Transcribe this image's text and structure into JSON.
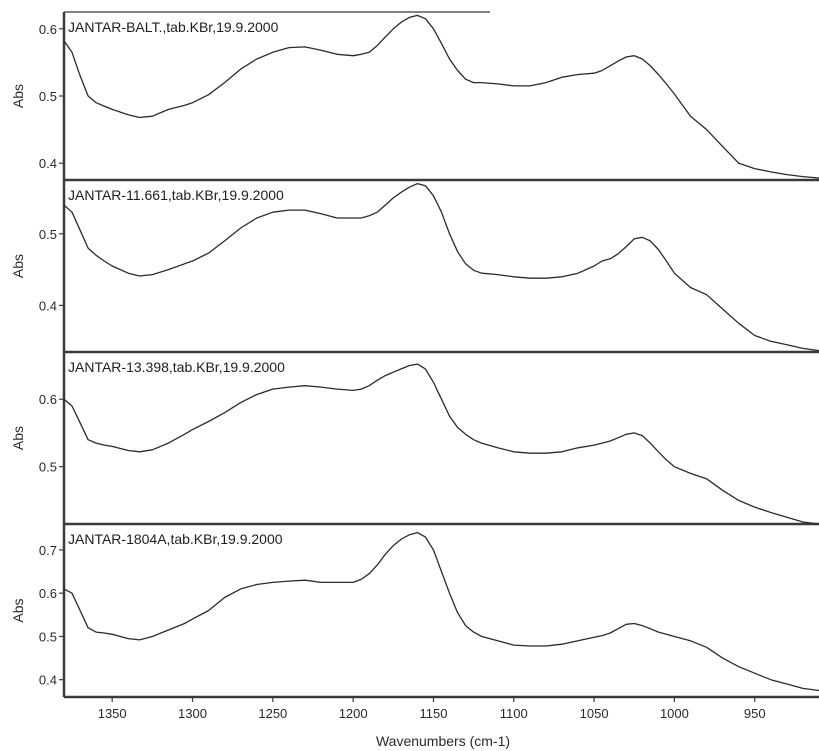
{
  "chart_data": [
    {
      "type": "line",
      "title": "JANTAR-BALT.,tab.KBr,19.9.2000",
      "ylabel": "Abs",
      "ylim": [
        0.375,
        0.625
      ],
      "yticks": [
        0.4,
        0.5,
        0.6
      ],
      "series": [
        {
          "x": [
            1380,
            1375,
            1370,
            1365,
            1360,
            1355,
            1350,
            1340,
            1333,
            1325,
            1315,
            1305,
            1300,
            1290,
            1280,
            1270,
            1260,
            1250,
            1240,
            1230,
            1220,
            1210,
            1200,
            1195,
            1190,
            1185,
            1180,
            1175,
            1170,
            1165,
            1160,
            1155,
            1150,
            1145,
            1140,
            1135,
            1130,
            1125,
            1120,
            1110,
            1100,
            1090,
            1080,
            1070,
            1060,
            1050,
            1045,
            1040,
            1035,
            1030,
            1025,
            1020,
            1015,
            1010,
            1005,
            1000,
            990,
            980,
            970,
            960,
            950,
            940,
            930,
            920,
            910
          ],
          "y": [
            0.582,
            0.565,
            0.53,
            0.5,
            0.49,
            0.485,
            0.48,
            0.472,
            0.468,
            0.47,
            0.48,
            0.486,
            0.49,
            0.502,
            0.52,
            0.54,
            0.555,
            0.565,
            0.572,
            0.573,
            0.568,
            0.562,
            0.56,
            0.562,
            0.565,
            0.575,
            0.588,
            0.6,
            0.61,
            0.617,
            0.62,
            0.615,
            0.6,
            0.578,
            0.555,
            0.538,
            0.525,
            0.52,
            0.52,
            0.518,
            0.515,
            0.515,
            0.52,
            0.528,
            0.532,
            0.534,
            0.538,
            0.545,
            0.552,
            0.558,
            0.56,
            0.555,
            0.545,
            0.532,
            0.518,
            0.503,
            0.47,
            0.45,
            0.425,
            0.4,
            0.392,
            0.387,
            0.383,
            0.38,
            0.378
          ]
        }
      ]
    },
    {
      "type": "line",
      "title": "JANTAR-11.661,tab.KBr,19.9.2000",
      "ylabel": "Abs",
      "ylim": [
        0.335,
        0.575
      ],
      "yticks": [
        0.4,
        0.5
      ],
      "series": [
        {
          "x": [
            1380,
            1375,
            1370,
            1365,
            1360,
            1355,
            1350,
            1340,
            1333,
            1325,
            1315,
            1305,
            1300,
            1290,
            1280,
            1270,
            1260,
            1250,
            1240,
            1230,
            1220,
            1210,
            1200,
            1195,
            1190,
            1185,
            1180,
            1175,
            1170,
            1165,
            1160,
            1155,
            1150,
            1145,
            1140,
            1135,
            1130,
            1125,
            1120,
            1110,
            1100,
            1090,
            1080,
            1070,
            1060,
            1050,
            1045,
            1040,
            1035,
            1030,
            1025,
            1020,
            1015,
            1010,
            1005,
            1000,
            990,
            980,
            970,
            960,
            950,
            940,
            930,
            920,
            910
          ],
          "y": [
            0.54,
            0.53,
            0.505,
            0.48,
            0.47,
            0.462,
            0.455,
            0.445,
            0.441,
            0.443,
            0.45,
            0.458,
            0.462,
            0.473,
            0.49,
            0.508,
            0.522,
            0.53,
            0.533,
            0.533,
            0.528,
            0.522,
            0.522,
            0.522,
            0.525,
            0.53,
            0.54,
            0.55,
            0.558,
            0.565,
            0.57,
            0.567,
            0.553,
            0.53,
            0.5,
            0.475,
            0.458,
            0.449,
            0.445,
            0.443,
            0.44,
            0.438,
            0.438,
            0.44,
            0.445,
            0.455,
            0.462,
            0.465,
            0.472,
            0.482,
            0.493,
            0.495,
            0.49,
            0.478,
            0.462,
            0.445,
            0.425,
            0.415,
            0.395,
            0.375,
            0.358,
            0.35,
            0.345,
            0.34,
            0.337
          ]
        }
      ]
    },
    {
      "type": "line",
      "title": "JANTAR-13.398,tab.KBr,19.9.2000",
      "ylabel": "Abs",
      "ylim": [
        0.415,
        0.67
      ],
      "yticks": [
        0.5,
        0.6
      ],
      "series": [
        {
          "x": [
            1380,
            1375,
            1370,
            1365,
            1360,
            1355,
            1350,
            1340,
            1333,
            1325,
            1315,
            1305,
            1300,
            1290,
            1280,
            1270,
            1260,
            1250,
            1240,
            1230,
            1220,
            1210,
            1200,
            1195,
            1190,
            1185,
            1180,
            1175,
            1170,
            1165,
            1160,
            1155,
            1150,
            1145,
            1140,
            1135,
            1130,
            1125,
            1120,
            1110,
            1100,
            1090,
            1080,
            1070,
            1060,
            1050,
            1045,
            1040,
            1035,
            1030,
            1025,
            1020,
            1015,
            1010,
            1005,
            1000,
            990,
            980,
            970,
            960,
            950,
            940,
            930,
            920,
            910
          ],
          "y": [
            0.6,
            0.59,
            0.565,
            0.54,
            0.535,
            0.532,
            0.53,
            0.524,
            0.522,
            0.525,
            0.535,
            0.548,
            0.555,
            0.567,
            0.58,
            0.595,
            0.607,
            0.615,
            0.618,
            0.62,
            0.618,
            0.615,
            0.613,
            0.615,
            0.62,
            0.628,
            0.635,
            0.64,
            0.645,
            0.65,
            0.652,
            0.645,
            0.625,
            0.6,
            0.575,
            0.558,
            0.548,
            0.54,
            0.535,
            0.528,
            0.522,
            0.52,
            0.52,
            0.522,
            0.528,
            0.532,
            0.535,
            0.538,
            0.543,
            0.548,
            0.55,
            0.546,
            0.535,
            0.522,
            0.51,
            0.5,
            0.49,
            0.482,
            0.465,
            0.45,
            0.44,
            0.432,
            0.425,
            0.418,
            0.415
          ]
        }
      ]
    },
    {
      "type": "line",
      "title": "JANTAR-1804A,tab.KBr,19.9.2000",
      "ylabel": "Abs",
      "xlabel": "Wavenumbers (cm-1)",
      "xlim": [
        1380,
        910
      ],
      "xticks": [
        1350,
        1300,
        1250,
        1200,
        1150,
        1100,
        1050,
        1000,
        950
      ],
      "ylim": [
        0.36,
        0.76
      ],
      "yticks": [
        0.4,
        0.5,
        0.6,
        0.7
      ],
      "series": [
        {
          "x": [
            1380,
            1375,
            1370,
            1365,
            1360,
            1355,
            1350,
            1340,
            1333,
            1325,
            1315,
            1305,
            1300,
            1290,
            1280,
            1270,
            1260,
            1250,
            1240,
            1230,
            1220,
            1210,
            1200,
            1195,
            1190,
            1185,
            1180,
            1175,
            1170,
            1165,
            1160,
            1155,
            1150,
            1145,
            1140,
            1135,
            1130,
            1125,
            1120,
            1110,
            1100,
            1090,
            1080,
            1070,
            1060,
            1050,
            1045,
            1040,
            1035,
            1030,
            1025,
            1020,
            1015,
            1010,
            1005,
            1000,
            990,
            980,
            970,
            960,
            950,
            940,
            930,
            920,
            910
          ],
          "y": [
            0.61,
            0.6,
            0.56,
            0.52,
            0.51,
            0.508,
            0.505,
            0.495,
            0.492,
            0.5,
            0.515,
            0.53,
            0.54,
            0.56,
            0.59,
            0.61,
            0.62,
            0.625,
            0.628,
            0.63,
            0.625,
            0.625,
            0.625,
            0.632,
            0.645,
            0.665,
            0.69,
            0.71,
            0.725,
            0.735,
            0.74,
            0.73,
            0.7,
            0.65,
            0.6,
            0.555,
            0.525,
            0.51,
            0.5,
            0.49,
            0.48,
            0.478,
            0.478,
            0.482,
            0.49,
            0.498,
            0.502,
            0.508,
            0.518,
            0.528,
            0.53,
            0.525,
            0.518,
            0.51,
            0.505,
            0.5,
            0.49,
            0.475,
            0.45,
            0.43,
            0.415,
            0.4,
            0.39,
            0.38,
            0.375
          ]
        }
      ]
    }
  ],
  "colors": {
    "line": "#2b2b2b",
    "frame": "#3a3a3a",
    "background": "#ffffff"
  }
}
